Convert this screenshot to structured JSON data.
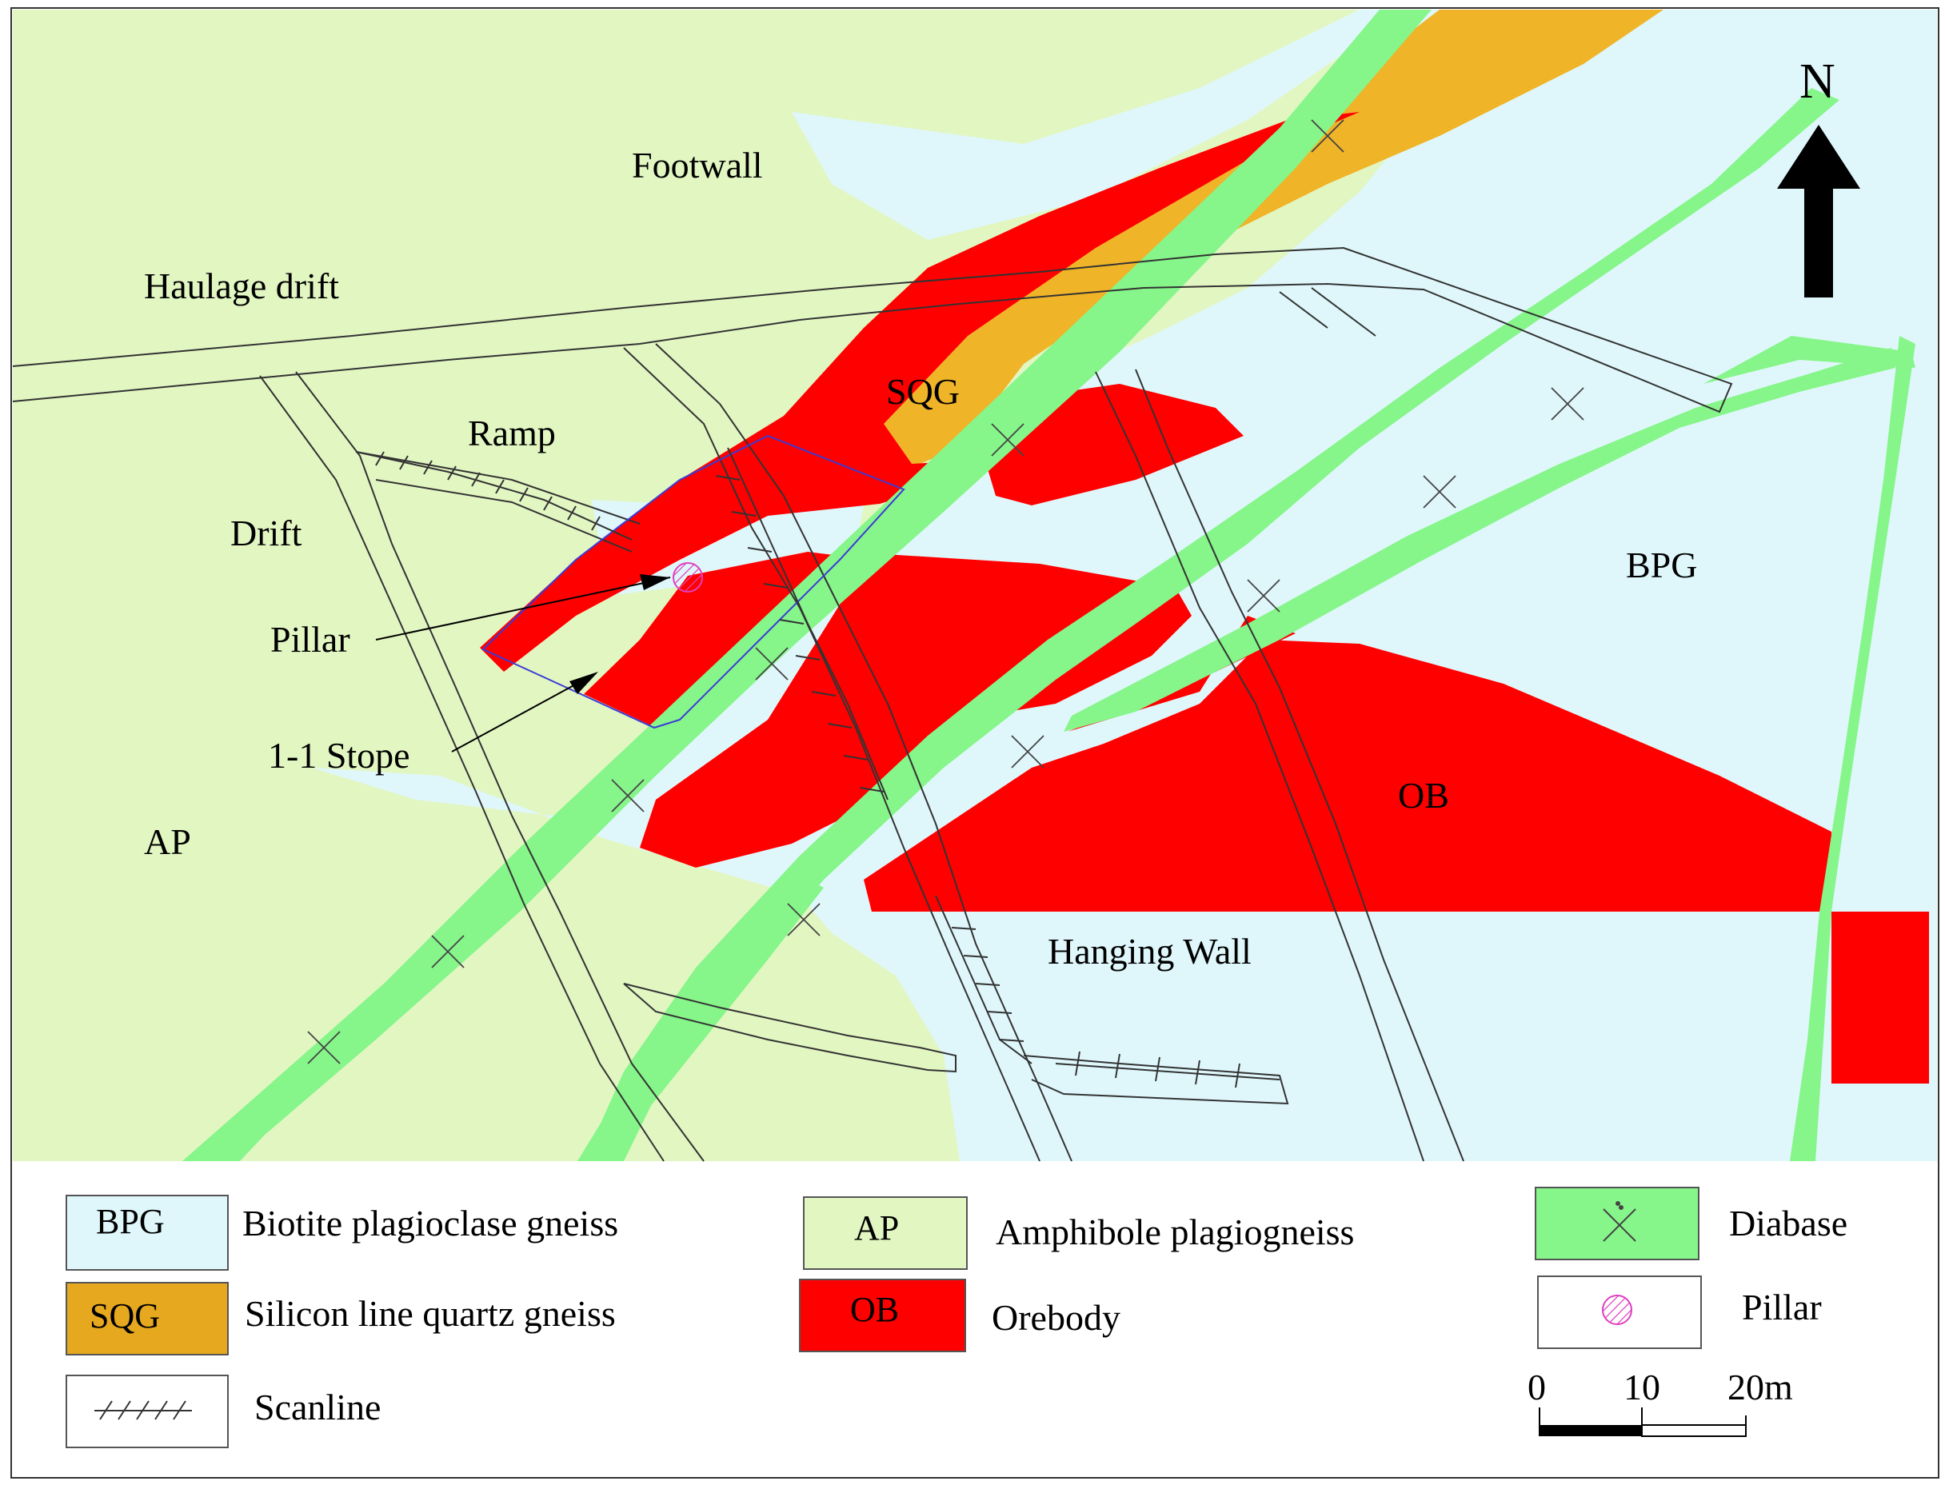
{
  "map": {
    "labels": {
      "footwall": "Footwall",
      "haulage_drift": "Haulage drift",
      "ramp": "Ramp",
      "drift": "Drift",
      "pillar": "Pillar",
      "stope": "1-1 Stope",
      "ap": "AP",
      "sqg": "SQG",
      "bpg": "BPG",
      "ob": "OB",
      "hanging_wall": "Hanging Wall"
    },
    "north_label": "N"
  },
  "legend": {
    "items": [
      {
        "code": "BPG",
        "label": "Biotite plagioclase gneiss"
      },
      {
        "code": "SQG",
        "label": "Silicon line quartz gneiss"
      },
      {
        "code": "",
        "label": "Scanline"
      },
      {
        "code": "AP",
        "label": "Amphibole plagiogneiss"
      },
      {
        "code": "OB",
        "label": "Orebody"
      },
      {
        "code": "",
        "label": "Diabase"
      },
      {
        "code": "",
        "label": "Pillar"
      }
    ]
  },
  "scale_bar": {
    "ticks": [
      "0",
      "10",
      "20m"
    ]
  },
  "colors": {
    "bpg": "#dff7fb",
    "sqg": "#f0b428",
    "ap": "#e2f6c2",
    "ob": "#ff0000",
    "diabase": "#86f58a",
    "pillar": "#e040c0"
  }
}
